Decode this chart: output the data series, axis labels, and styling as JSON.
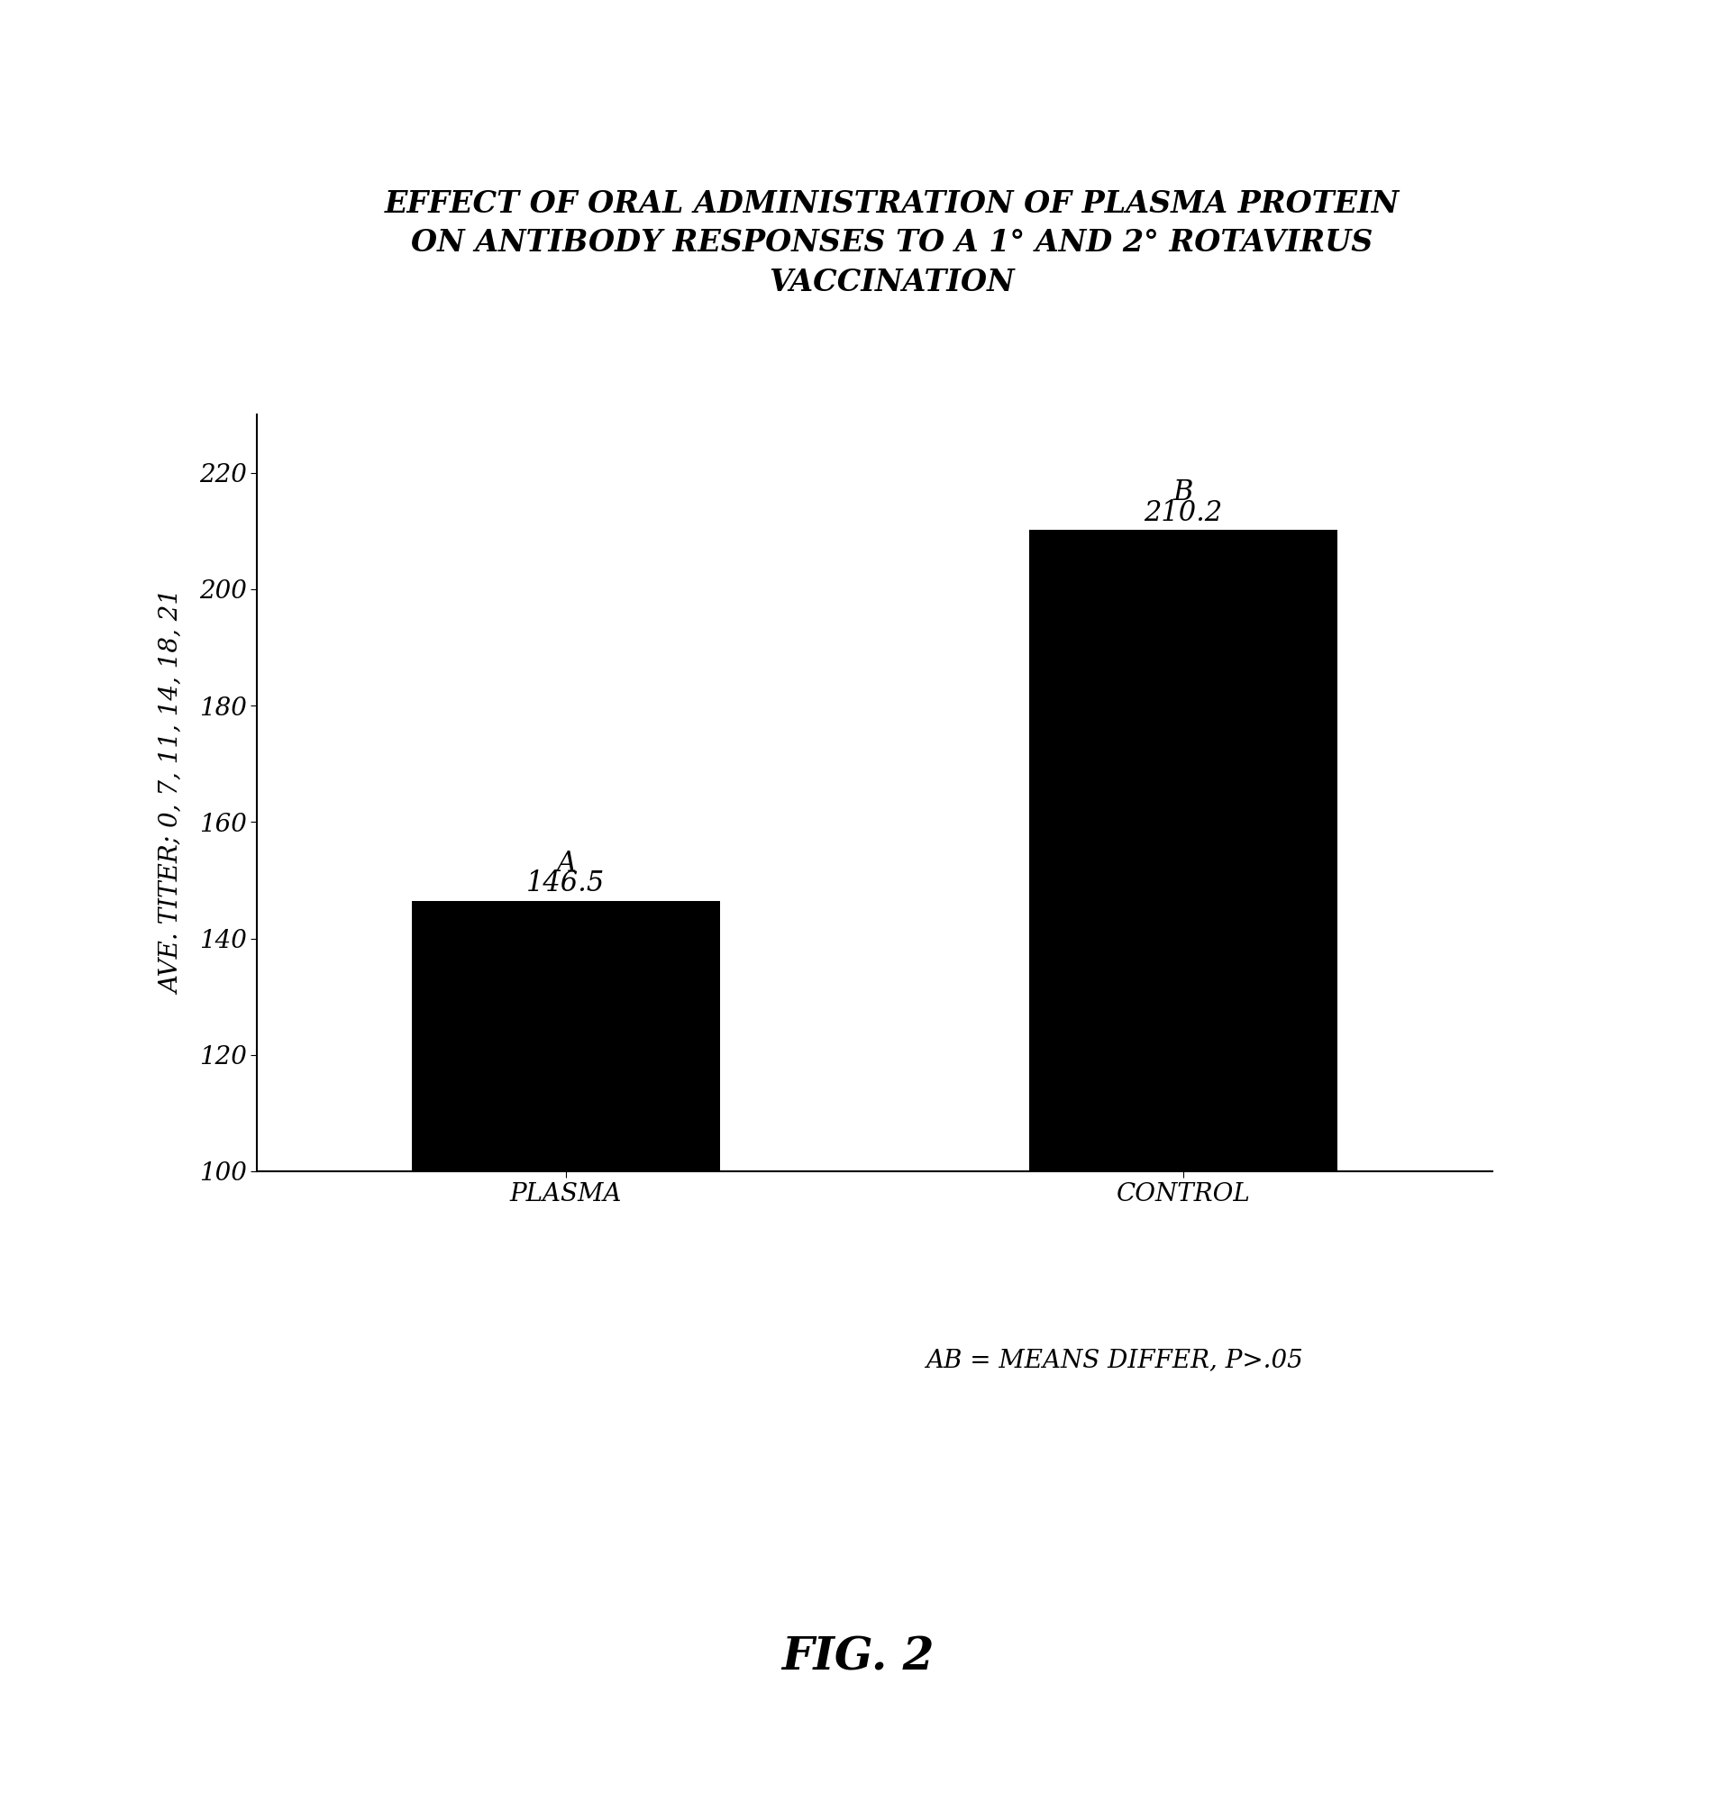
{
  "title_lines": [
    "EFFECT OF ORAL ADMINISTRATION OF PLASMA PROTEIN",
    "ON ANTIBODY RESPONSES TO A 1° AND 2° ROTAVIRUS",
    "VACCINATION"
  ],
  "categories": [
    "PLASMA",
    "CONTROL"
  ],
  "values": [
    146.5,
    210.2
  ],
  "bar_color": "#000000",
  "bar_width": 0.25,
  "ylim": [
    100,
    230
  ],
  "yticks": [
    100,
    120,
    140,
    160,
    180,
    200,
    220
  ],
  "ylabel": "AVE. TITER; 0, 7, 11, 14, 18, 21",
  "label_letters": [
    "A",
    "B"
  ],
  "label_values": [
    "146.5",
    "210.2"
  ],
  "footnote": "AB = MEANS DIFFER, P>.05",
  "figure_label": "FIG. 2",
  "background_color": "#ffffff",
  "title_fontsize": 24,
  "axis_fontsize": 20,
  "tick_fontsize": 20,
  "bar_label_letter_fontsize": 22,
  "bar_label_value_fontsize": 22,
  "footnote_fontsize": 20,
  "figure_label_fontsize": 36,
  "ylabel_fontsize": 20
}
